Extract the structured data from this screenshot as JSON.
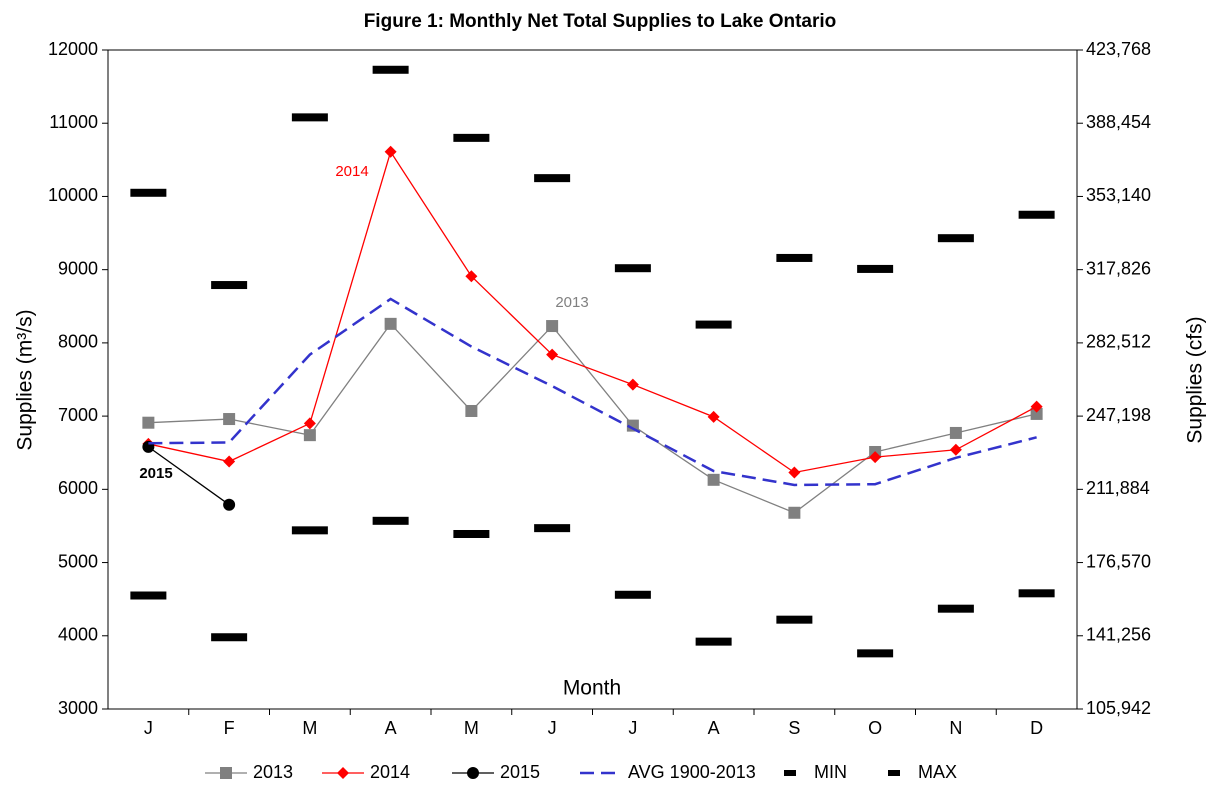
{
  "chart_data": {
    "type": "line",
    "title": "Figure 1:  Monthly Net Total Supplies to Lake Ontario",
    "x_label": "Month",
    "y_label": "Supplies (m³/s)",
    "y2_label": "Supplies (cfs)",
    "categories": [
      "J",
      "F",
      "M",
      "A",
      "M",
      "J",
      "J",
      "A",
      "S",
      "O",
      "N",
      "D"
    ],
    "ylim": [
      3000,
      12000
    ],
    "yticks": [
      3000,
      4000,
      5000,
      6000,
      7000,
      8000,
      9000,
      10000,
      11000,
      12000
    ],
    "y2lim": [
      105942,
      423768
    ],
    "y2ticks": [
      {
        "value": 105942,
        "label": "105,942"
      },
      {
        "value": 141256,
        "label": "141,256"
      },
      {
        "value": 176570,
        "label": "176,570"
      },
      {
        "value": 211884,
        "label": "211,884"
      },
      {
        "value": 247198,
        "label": "247,198"
      },
      {
        "value": 282512,
        "label": "282,512"
      },
      {
        "value": 317826,
        "label": "317,826"
      },
      {
        "value": 353140,
        "label": "353,140"
      },
      {
        "value": 388454,
        "label": "388,454"
      },
      {
        "value": 423768,
        "label": "423,768"
      }
    ],
    "grid": false,
    "legend": "bottom",
    "series": [
      {
        "name": "2013",
        "color": "#808080",
        "marker": "square",
        "line": "solid",
        "values": [
          6910,
          6960,
          6740,
          8260,
          7070,
          8230,
          6870,
          6130,
          5680,
          6510,
          6770,
          7030
        ]
      },
      {
        "name": "2014",
        "color": "#ff0000",
        "marker": "diamond",
        "line": "solid",
        "values": [
          6620,
          6380,
          6900,
          10610,
          8910,
          7840,
          7430,
          6990,
          6230,
          6440,
          6540,
          7130
        ]
      },
      {
        "name": "2015",
        "color": "#000000",
        "marker": "circle",
        "line": "solid",
        "values": [
          6580,
          5790,
          null,
          null,
          null,
          null,
          null,
          null,
          null,
          null,
          null,
          null
        ]
      },
      {
        "name": "AVG 1900-2013",
        "color": "#3333cc",
        "marker": "none",
        "line": "dashed",
        "values": [
          6630,
          6640,
          7840,
          8600,
          7950,
          7410,
          6830,
          6250,
          6060,
          6070,
          6430,
          6710
        ]
      },
      {
        "name": "MIN",
        "color": "#000000",
        "marker": "dash",
        "line": "none",
        "values": [
          4550,
          3980,
          5440,
          5570,
          5390,
          5470,
          4560,
          3920,
          4220,
          3760,
          4370,
          4580
        ]
      },
      {
        "name": "MAX",
        "color": "#000000",
        "marker": "dash",
        "line": "none",
        "values": [
          10050,
          8790,
          11080,
          11730,
          10800,
          10250,
          9020,
          8250,
          9160,
          9010,
          9430,
          9750
        ]
      }
    ],
    "annotations": [
      {
        "text": "2014",
        "color": "#ff0000"
      },
      {
        "text": "2013",
        "color": "#808080"
      },
      {
        "text": "2015",
        "color": "#000000"
      }
    ]
  }
}
